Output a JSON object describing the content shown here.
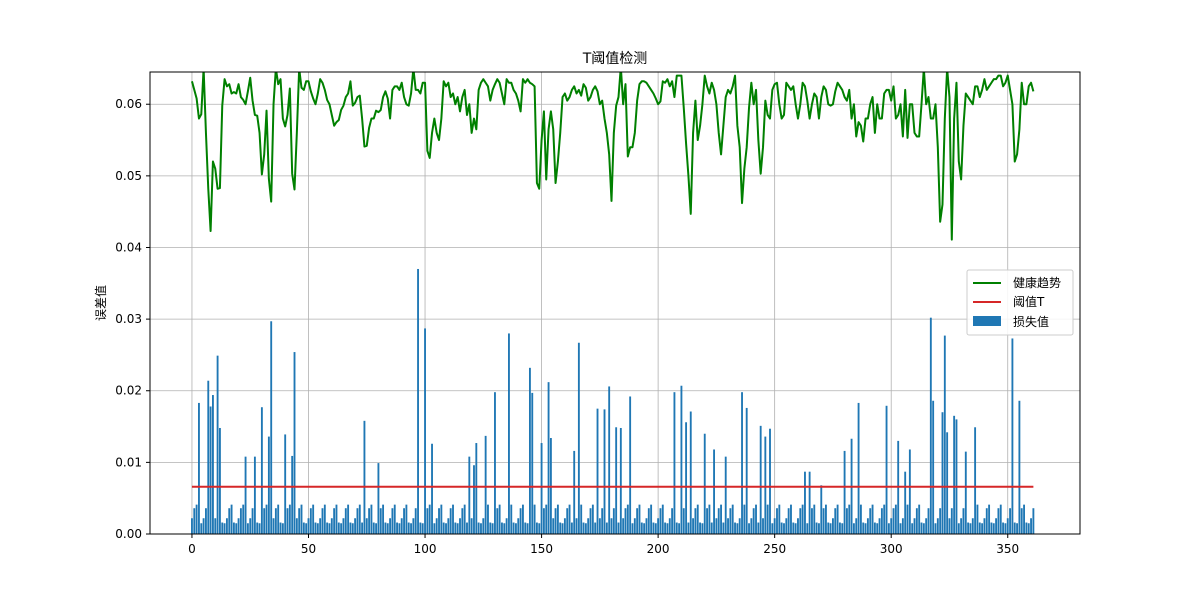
{
  "chart_data": {
    "type": "bar",
    "title": "T阈值检测",
    "xlabel": "",
    "ylabel": "误差值",
    "xlim": [
      -18,
      381
    ],
    "ylim": [
      0,
      0.0645
    ],
    "xticks": [
      0,
      50,
      100,
      150,
      200,
      250,
      300,
      350
    ],
    "yticks": [
      0.0,
      0.01,
      0.02,
      0.03,
      0.04,
      0.05,
      0.06
    ],
    "ytick_labels": [
      "0.00",
      "0.01",
      "0.02",
      "0.03",
      "0.04",
      "0.05",
      "0.06"
    ],
    "grid": true,
    "legend_position": "center-right",
    "n_points": 362,
    "series": [
      {
        "name": "损失值",
        "kind": "bar",
        "color": "#1f77b4",
        "labeled_peaks": [
          {
            "x": 3,
            "y": 0.0183
          },
          {
            "x": 7,
            "y": 0.0214
          },
          {
            "x": 8,
            "y": 0.0178
          },
          {
            "x": 9,
            "y": 0.0194
          },
          {
            "x": 11,
            "y": 0.0249
          },
          {
            "x": 12,
            "y": 0.0148
          },
          {
            "x": 23,
            "y": 0.0108
          },
          {
            "x": 27,
            "y": 0.0108
          },
          {
            "x": 30,
            "y": 0.0177
          },
          {
            "x": 33,
            "y": 0.0136
          },
          {
            "x": 34,
            "y": 0.0297
          },
          {
            "x": 40,
            "y": 0.0139
          },
          {
            "x": 43,
            "y": 0.0109
          },
          {
            "x": 44,
            "y": 0.0254
          },
          {
            "x": 74,
            "y": 0.0158
          },
          {
            "x": 80,
            "y": 0.0099
          },
          {
            "x": 97,
            "y": 0.037
          },
          {
            "x": 100,
            "y": 0.0287
          },
          {
            "x": 103,
            "y": 0.0126
          },
          {
            "x": 119,
            "y": 0.0108
          },
          {
            "x": 121,
            "y": 0.0096
          },
          {
            "x": 122,
            "y": 0.0127
          },
          {
            "x": 126,
            "y": 0.0137
          },
          {
            "x": 130,
            "y": 0.0198
          },
          {
            "x": 136,
            "y": 0.028
          },
          {
            "x": 145,
            "y": 0.0232
          },
          {
            "x": 146,
            "y": 0.0197
          },
          {
            "x": 150,
            "y": 0.0127
          },
          {
            "x": 153,
            "y": 0.0212
          },
          {
            "x": 154,
            "y": 0.0134
          },
          {
            "x": 164,
            "y": 0.0116
          },
          {
            "x": 166,
            "y": 0.0267
          },
          {
            "x": 174,
            "y": 0.0175
          },
          {
            "x": 177,
            "y": 0.0174
          },
          {
            "x": 179,
            "y": 0.0206
          },
          {
            "x": 182,
            "y": 0.0149
          },
          {
            "x": 184,
            "y": 0.0148
          },
          {
            "x": 188,
            "y": 0.0192
          },
          {
            "x": 207,
            "y": 0.0198
          },
          {
            "x": 210,
            "y": 0.0207
          },
          {
            "x": 212,
            "y": 0.0156
          },
          {
            "x": 214,
            "y": 0.0171
          },
          {
            "x": 220,
            "y": 0.014
          },
          {
            "x": 224,
            "y": 0.0118
          },
          {
            "x": 229,
            "y": 0.0108
          },
          {
            "x": 236,
            "y": 0.0198
          },
          {
            "x": 238,
            "y": 0.0176
          },
          {
            "x": 244,
            "y": 0.0151
          },
          {
            "x": 246,
            "y": 0.0136
          },
          {
            "x": 248,
            "y": 0.0147
          },
          {
            "x": 263,
            "y": 0.0087
          },
          {
            "x": 265,
            "y": 0.0087
          },
          {
            "x": 270,
            "y": 0.0068
          },
          {
            "x": 280,
            "y": 0.0116
          },
          {
            "x": 283,
            "y": 0.0133
          },
          {
            "x": 286,
            "y": 0.0183
          },
          {
            "x": 298,
            "y": 0.0179
          },
          {
            "x": 303,
            "y": 0.013
          },
          {
            "x": 306,
            "y": 0.0087
          },
          {
            "x": 308,
            "y": 0.0118
          },
          {
            "x": 317,
            "y": 0.0302
          },
          {
            "x": 318,
            "y": 0.0186
          },
          {
            "x": 322,
            "y": 0.017
          },
          {
            "x": 323,
            "y": 0.0277
          },
          {
            "x": 324,
            "y": 0.0142
          },
          {
            "x": 327,
            "y": 0.0165
          },
          {
            "x": 328,
            "y": 0.016
          },
          {
            "x": 332,
            "y": 0.0115
          },
          {
            "x": 336,
            "y": 0.0149
          },
          {
            "x": 352,
            "y": 0.0273
          },
          {
            "x": 355,
            "y": 0.0186
          }
        ],
        "baseline_values": [
          0.0022,
          0.0031,
          0.0012,
          0.0045,
          0.0008,
          0.0019,
          0.0027,
          0.0036,
          0.0014,
          0.005,
          0.001,
          0.0024,
          0.0033,
          0.0017,
          0.0041,
          0.0009,
          0.0028,
          0.0021,
          0.0055,
          0.0013,
          0.003,
          0.0016,
          0.0039,
          0.0025,
          0.0011,
          0.0046,
          0.002,
          0.0034,
          0.0015,
          0.0029,
          0.0062,
          0.0018,
          0.0026,
          0.0043,
          0.0012,
          0.0037
        ]
      },
      {
        "name": "健康趋势",
        "kind": "line",
        "color": "#008000",
        "values": [
          0.0632,
          0.062,
          0.0608,
          0.058,
          0.0586,
          0.065,
          0.056,
          0.0482,
          0.0423,
          0.052,
          0.051,
          0.0482,
          0.0483,
          0.0598,
          0.0635,
          0.0625,
          0.0628,
          0.0615,
          0.0617,
          0.0615,
          0.0628,
          0.061,
          0.0606,
          0.06,
          0.0618,
          0.0637,
          0.0605,
          0.0585,
          0.0584,
          0.056,
          0.0502,
          0.053,
          0.0591,
          0.0496,
          0.0464,
          0.06,
          0.065,
          0.0628,
          0.0635,
          0.058,
          0.0569,
          0.0585,
          0.0622,
          0.0503,
          0.0481,
          0.056,
          0.065,
          0.0623,
          0.062,
          0.0632,
          0.0632,
          0.0618,
          0.0608,
          0.06,
          0.0615,
          0.0635,
          0.063,
          0.062,
          0.0606,
          0.06,
          0.0585,
          0.057,
          0.0575,
          0.0578,
          0.0592,
          0.0598,
          0.061,
          0.0615,
          0.0632,
          0.0598,
          0.0602,
          0.061,
          0.0612,
          0.058,
          0.0541,
          0.0542,
          0.0567,
          0.058,
          0.058,
          0.0591,
          0.0589,
          0.0592,
          0.061,
          0.0618,
          0.0608,
          0.058,
          0.062,
          0.0625,
          0.0625,
          0.062,
          0.063,
          0.061,
          0.06,
          0.0598,
          0.0615,
          0.065,
          0.062,
          0.062,
          0.0615,
          0.063,
          0.063,
          0.0535,
          0.0525,
          0.056,
          0.058,
          0.056,
          0.055,
          0.058,
          0.0632,
          0.0625,
          0.063,
          0.061,
          0.0615,
          0.06,
          0.061,
          0.059,
          0.061,
          0.062,
          0.0585,
          0.06,
          0.056,
          0.058,
          0.0565,
          0.062,
          0.063,
          0.0635,
          0.063,
          0.0625,
          0.0605,
          0.062,
          0.0628,
          0.0635,
          0.063,
          0.0615,
          0.06,
          0.0635,
          0.063,
          0.063,
          0.062,
          0.0615,
          0.0605,
          0.059,
          0.0635,
          0.063,
          0.0635,
          0.063,
          0.0628,
          0.0625,
          0.049,
          0.0482,
          0.055,
          0.059,
          0.0495,
          0.0565,
          0.059,
          0.0565,
          0.049,
          0.052,
          0.056,
          0.061,
          0.0615,
          0.0605,
          0.061,
          0.062,
          0.0625,
          0.0615,
          0.062,
          0.0612,
          0.0628,
          0.0623,
          0.0605,
          0.061,
          0.062,
          0.0625,
          0.0618,
          0.06,
          0.0605,
          0.058,
          0.056,
          0.053,
          0.0465,
          0.056,
          0.0598,
          0.061,
          0.0652,
          0.06,
          0.0628,
          0.0527,
          0.054,
          0.054,
          0.056,
          0.0605,
          0.0628,
          0.0632,
          0.0632,
          0.063,
          0.0625,
          0.062,
          0.0615,
          0.0608,
          0.06,
          0.0604,
          0.0632,
          0.063,
          0.0635,
          0.0625,
          0.0632,
          0.061,
          0.064,
          0.064,
          0.064,
          0.0595,
          0.0545,
          0.05,
          0.0447,
          0.056,
          0.0605,
          0.055,
          0.057,
          0.06,
          0.064,
          0.0625,
          0.0615,
          0.063,
          0.062,
          0.06,
          0.056,
          0.053,
          0.057,
          0.061,
          0.062,
          0.0615,
          0.0625,
          0.064,
          0.057,
          0.054,
          0.0462,
          0.051,
          0.054,
          0.0595,
          0.063,
          0.06,
          0.062,
          0.055,
          0.0503,
          0.054,
          0.0605,
          0.0585,
          0.058,
          0.062,
          0.0628,
          0.063,
          0.06,
          0.058,
          0.0585,
          0.063,
          0.0625,
          0.062,
          0.0625,
          0.06,
          0.058,
          0.06,
          0.063,
          0.0625,
          0.0605,
          0.058,
          0.06,
          0.0615,
          0.061,
          0.058,
          0.061,
          0.0625,
          0.062,
          0.06,
          0.0598,
          0.06,
          0.0618,
          0.063,
          0.0625,
          0.062,
          0.061,
          0.0605,
          0.062,
          0.058,
          0.06,
          0.0555,
          0.0575,
          0.057,
          0.0548,
          0.058,
          0.058,
          0.06,
          0.061,
          0.056,
          0.06,
          0.058,
          0.058,
          0.0615,
          0.062,
          0.062,
          0.0605,
          0.0625,
          0.058,
          0.0585,
          0.06,
          0.0555,
          0.062,
          0.0553,
          0.06,
          0.06,
          0.056,
          0.0555,
          0.0555,
          0.06,
          0.065,
          0.06,
          0.061,
          0.058,
          0.058,
          0.06,
          0.054,
          0.0436,
          0.046,
          0.058,
          0.065,
          0.061,
          0.0411,
          0.058,
          0.063,
          0.052,
          0.0495,
          0.057,
          0.0615,
          0.061,
          0.0605,
          0.06,
          0.0625,
          0.0625,
          0.061,
          0.062,
          0.0635,
          0.062,
          0.0625,
          0.063,
          0.0635,
          0.0635,
          0.064,
          0.064,
          0.0625,
          0.063,
          0.064,
          0.062,
          0.06,
          0.052,
          0.053,
          0.0565,
          0.063,
          0.06,
          0.06,
          0.0625,
          0.063,
          0.0618
        ]
      },
      {
        "name": "阈值T",
        "kind": "hline",
        "color": "#d62728",
        "value": 0.0066,
        "x_range": [
          0,
          361
        ]
      }
    ]
  },
  "legend": {
    "items": [
      {
        "label": "健康趋势",
        "color": "#008000",
        "kind": "line"
      },
      {
        "label": "阈值T",
        "color": "#d62728",
        "kind": "line"
      },
      {
        "label": "损失值",
        "color": "#1f77b4",
        "kind": "patch"
      }
    ]
  }
}
